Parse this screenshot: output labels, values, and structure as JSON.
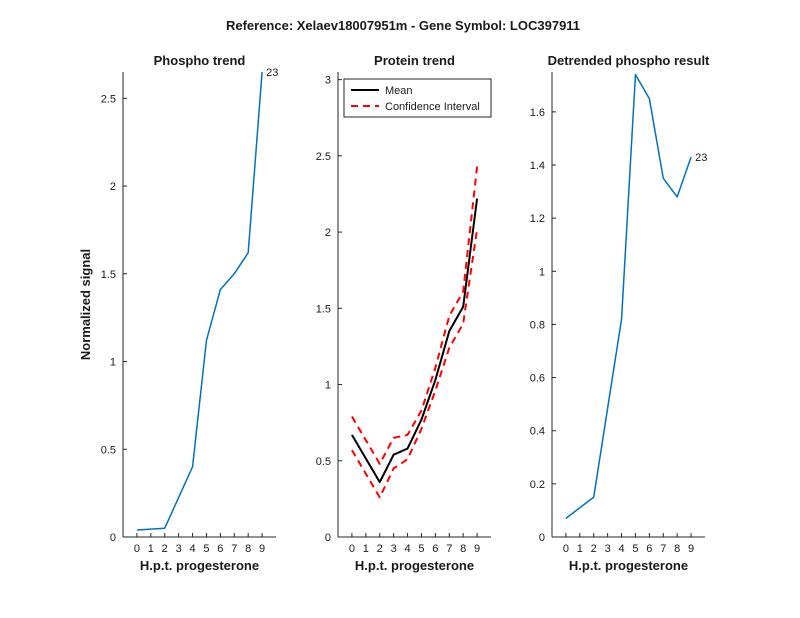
{
  "figure": {
    "suptitle": "Reference:  Xelaev18007951m - Gene Symbol:  LOC397911"
  },
  "colors": {
    "blue": "#0072BD",
    "black": "#000000",
    "red": "#FF0000",
    "axis": "#262626"
  },
  "chart_data": [
    {
      "type": "line",
      "title": "Phospho trend",
      "xlabel": "H.p.t. progesterone",
      "ylabel": "Normalized signal",
      "x": [
        0,
        2,
        4,
        5,
        6,
        7,
        8,
        9
      ],
      "xticks": [
        0,
        1,
        2,
        3,
        4,
        5,
        6,
        7,
        8,
        9
      ],
      "xlim": [
        -1,
        10
      ],
      "ylim": [
        0,
        2.65
      ],
      "yticks": [
        0,
        0.5,
        1,
        1.5,
        2,
        2.5
      ],
      "ytick_labels": [
        "0",
        "0.5",
        "1",
        "1.5",
        "2",
        "2.5"
      ],
      "series": [
        {
          "name": "Phospho",
          "values": [
            0.04,
            0.05,
            0.4,
            1.12,
            1.41,
            1.5,
            1.62,
            2.65
          ],
          "color": "#0072BD",
          "style": "solid"
        }
      ],
      "end_label": "23"
    },
    {
      "type": "line",
      "title": "Protein trend",
      "xlabel": "H.p.t. progesterone",
      "ylabel": "",
      "x": [
        0,
        2,
        3,
        4,
        5,
        6,
        7,
        8,
        9
      ],
      "xticks": [
        0,
        1,
        2,
        3,
        4,
        5,
        6,
        7,
        8,
        9
      ],
      "xlim": [
        -1,
        10
      ],
      "ylim": [
        0,
        3.05
      ],
      "yticks": [
        0,
        0.5,
        1,
        1.5,
        2,
        2.5,
        3
      ],
      "ytick_labels": [
        "0",
        "0.5",
        "1",
        "1.5",
        "2",
        "2.5",
        "3"
      ],
      "legend": {
        "placement": "top-left",
        "entries": [
          "Mean",
          "Confidence Interval"
        ]
      },
      "series": [
        {
          "name": "Mean",
          "values": [
            0.67,
            0.36,
            0.54,
            0.58,
            0.77,
            1.03,
            1.35,
            1.51,
            2.22
          ],
          "color": "#000000",
          "style": "solid"
        },
        {
          "name": "Confidence Interval",
          "values": [
            0.79,
            0.48,
            0.65,
            0.67,
            0.83,
            1.11,
            1.45,
            1.61,
            2.43
          ],
          "color": "#FF0000",
          "style": "dashed"
        },
        {
          "name": "Confidence Interval (lower)",
          "values": [
            0.57,
            0.26,
            0.45,
            0.51,
            0.71,
            0.96,
            1.24,
            1.4,
            2.02
          ],
          "color": "#FF0000",
          "style": "dashed"
        }
      ]
    },
    {
      "type": "line",
      "title": "Detrended phospho result",
      "xlabel": "H.p.t. progesterone",
      "ylabel": "",
      "x": [
        0,
        2,
        4,
        5,
        6,
        7,
        8,
        9
      ],
      "xticks": [
        0,
        1,
        2,
        3,
        4,
        5,
        6,
        7,
        8,
        9
      ],
      "xlim": [
        -1,
        10
      ],
      "ylim": [
        0,
        1.75
      ],
      "yticks": [
        0,
        0.2,
        0.4,
        0.6,
        0.8,
        1,
        1.2,
        1.4,
        1.6
      ],
      "ytick_labels": [
        "0",
        "0.2",
        "0.4",
        "0.6",
        "0.8",
        "1",
        "1.2",
        "1.4",
        "1.6"
      ],
      "series": [
        {
          "name": "Detrended",
          "values": [
            0.07,
            0.15,
            0.82,
            1.74,
            1.65,
            1.35,
            1.28,
            1.43
          ],
          "color": "#0072BD",
          "style": "solid"
        }
      ],
      "end_label": "23"
    }
  ]
}
